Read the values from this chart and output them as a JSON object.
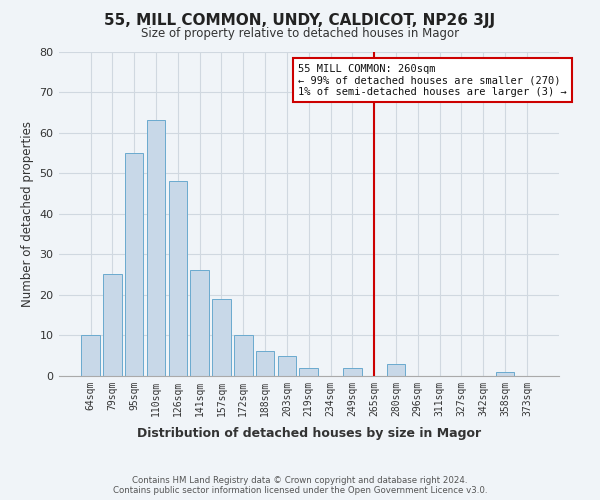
{
  "title": "55, MILL COMMON, UNDY, CALDICOT, NP26 3JJ",
  "subtitle": "Size of property relative to detached houses in Magor",
  "xlabel": "Distribution of detached houses by size in Magor",
  "ylabel": "Number of detached properties",
  "bar_labels": [
    "64sqm",
    "79sqm",
    "95sqm",
    "110sqm",
    "126sqm",
    "141sqm",
    "157sqm",
    "172sqm",
    "188sqm",
    "203sqm",
    "219sqm",
    "234sqm",
    "249sqm",
    "265sqm",
    "280sqm",
    "296sqm",
    "311sqm",
    "327sqm",
    "342sqm",
    "358sqm",
    "373sqm"
  ],
  "bar_values": [
    10,
    25,
    55,
    63,
    48,
    26,
    19,
    10,
    6,
    5,
    2,
    0,
    2,
    0,
    3,
    0,
    0,
    0,
    0,
    1,
    0
  ],
  "bar_color": "#c8d8e8",
  "bar_edge_color": "#6aaacf",
  "vline_color": "#cc0000",
  "vline_index": 13,
  "ylim": [
    0,
    80
  ],
  "yticks": [
    0,
    10,
    20,
    30,
    40,
    50,
    60,
    70,
    80
  ],
  "annotation_title": "55 MILL COMMON: 260sqm",
  "annotation_line1": "← 99% of detached houses are smaller (270)",
  "annotation_line2": "1% of semi-detached houses are larger (3) →",
  "footer_line1": "Contains HM Land Registry data © Crown copyright and database right 2024.",
  "footer_line2": "Contains public sector information licensed under the Open Government Licence v3.0.",
  "background_color": "#f0f4f8",
  "grid_color": "#d0d8e0"
}
